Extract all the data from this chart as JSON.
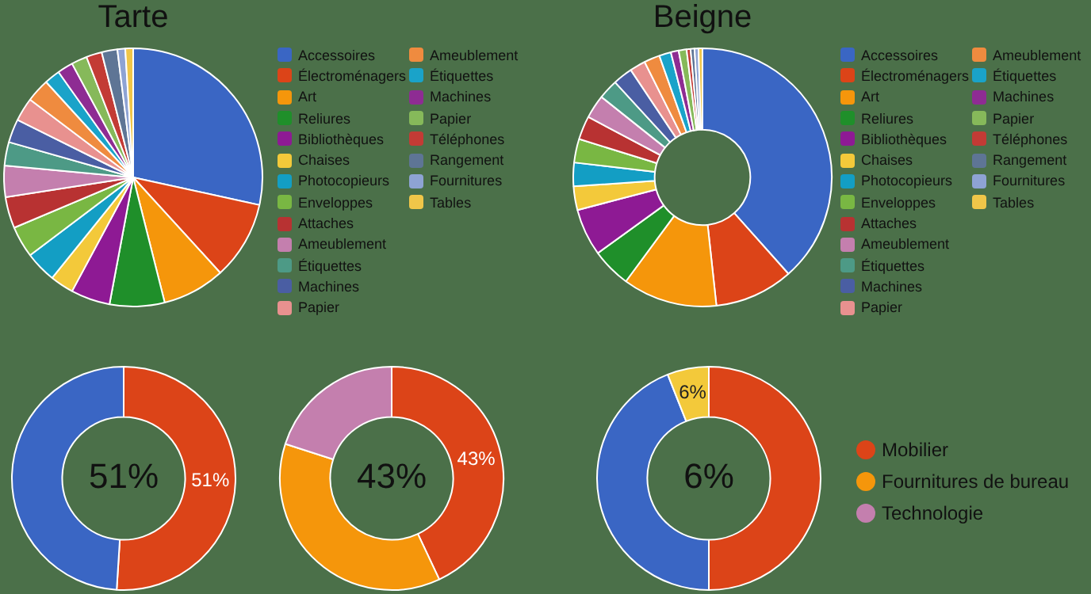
{
  "chart_data": [
    {
      "type": "pie",
      "title": "Tarte",
      "legend": "right",
      "categories": [
        "Accessoires",
        "Électroménagers",
        "Art",
        "Reliures",
        "Bibliothèques",
        "Chaises",
        "Photocopieurs",
        "Enveloppes",
        "Attaches",
        "Ameublement",
        "Étiquettes",
        "Machines",
        "Papier",
        "Ameublement",
        "Étiquettes",
        "Machines",
        "Papier",
        "Téléphones",
        "Rangement",
        "Fournitures",
        "Tables"
      ],
      "values": [
        29,
        10,
        8,
        7,
        5,
        3,
        4,
        4,
        4,
        4,
        3,
        3,
        3,
        3,
        2,
        2,
        2,
        2,
        2,
        1,
        1
      ],
      "colors": [
        "#3a66c4",
        "#dc4418",
        "#f5960b",
        "#1f8f2a",
        "#8e1a94",
        "#f3c93a",
        "#139ec4",
        "#79b743",
        "#b83232",
        "#c47fae",
        "#4d9a86",
        "#4a5ea3",
        "#e8918f",
        "#ef8b3f",
        "#1aa3c9",
        "#8e2c93",
        "#86b95a",
        "#c33b35",
        "#5e7595",
        "#8ea3d4",
        "#f0c649"
      ]
    },
    {
      "type": "donut",
      "title": "Beigne",
      "legend": "right",
      "categories": [
        "Accessoires",
        "Électroménagers",
        "Art",
        "Reliures",
        "Bibliothèques",
        "Chaises",
        "Photocopieurs",
        "Enveloppes",
        "Attaches",
        "Ameublement",
        "Étiquettes",
        "Machines",
        "Papier",
        "Ameublement",
        "Étiquettes",
        "Machines",
        "Papier",
        "Téléphones",
        "Rangement",
        "Fournitures",
        "Tables"
      ],
      "values": [
        39,
        10,
        12,
        5,
        6,
        3,
        3,
        3,
        3,
        3,
        2.5,
        2.5,
        2,
        2,
        1.5,
        1,
        1,
        0.5,
        0.5,
        0.5,
        0.5
      ],
      "colors": [
        "#3a66c4",
        "#dc4418",
        "#f5960b",
        "#1f8f2a",
        "#8e1a94",
        "#f3c93a",
        "#139ec4",
        "#79b743",
        "#b83232",
        "#c47fae",
        "#4d9a86",
        "#4a5ea3",
        "#e8918f",
        "#ef8b3f",
        "#1aa3c9",
        "#8e2c93",
        "#86b95a",
        "#c33b35",
        "#5e7595",
        "#8ea3d4",
        "#f0c649"
      ]
    },
    {
      "type": "donut",
      "categories": [
        null,
        null
      ],
      "values": [
        51,
        49
      ],
      "colors": [
        "#dc4418",
        "#3a66c4"
      ],
      "value_labels": [
        "51%",
        null
      ],
      "annotations": [
        "51%"
      ]
    },
    {
      "type": "donut",
      "legend": "right",
      "categories": [
        "Mobilier",
        "Fournitures de bureau",
        "Technologie"
      ],
      "values": [
        43,
        37,
        20
      ],
      "colors": [
        "#dc4418",
        "#f5960b",
        "#c47fae"
      ],
      "value_labels": [
        "43%",
        null,
        null
      ],
      "annotations": [
        "43%"
      ]
    },
    {
      "type": "donut",
      "categories": [
        null,
        null,
        null
      ],
      "values": [
        50,
        44,
        6
      ],
      "colors": [
        "#dc4418",
        "#3a66c4",
        "#f3c93a"
      ],
      "value_labels": [
        null,
        null,
        "6%"
      ],
      "annotations": [
        "6%"
      ]
    }
  ]
}
